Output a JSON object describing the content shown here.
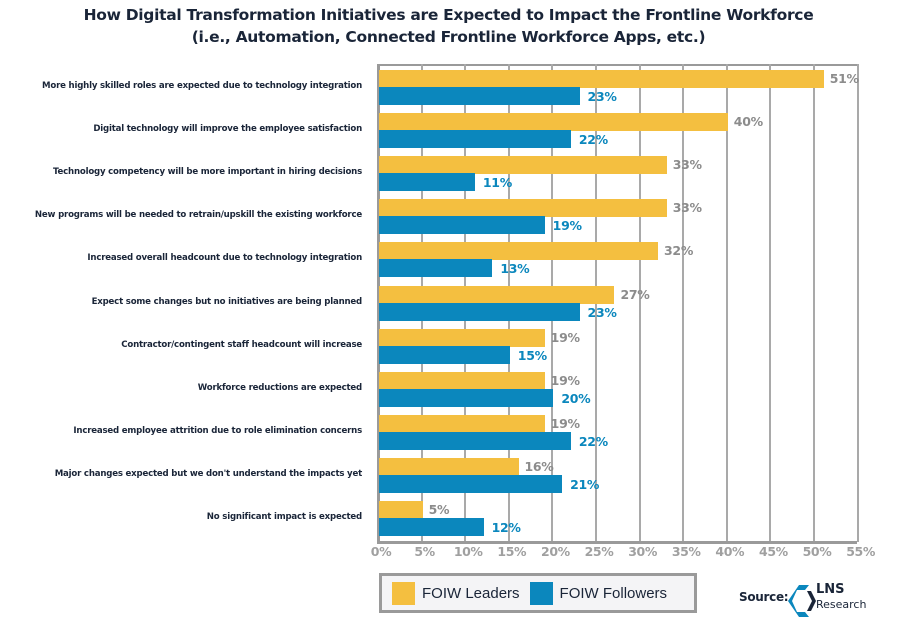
{
  "title": {
    "line1": "How Digital Transformation Initiatives are Expected to Impact the Frontline Workforce",
    "line2": "(i.e., Automation, Connected Frontline Workforce Apps, etc.)"
  },
  "colors": {
    "leaders": "#f4bf40",
    "followers": "#0b87bd",
    "grid": "#a9a9a9",
    "label_leaders": "#8c8c8c"
  },
  "legend": {
    "leaders": "FOIW Leaders",
    "followers": "FOIW Followers"
  },
  "source": {
    "label": "Source:",
    "logo_line1": "LNS",
    "logo_line2": "Research"
  },
  "axis": {
    "ticks": [
      "0%",
      "5%",
      "10%",
      "15%",
      "20%",
      "25%",
      "30%",
      "35%",
      "40%",
      "45%",
      "50%",
      "55%"
    ]
  },
  "rows": [
    {
      "label": "More highly skilled roles are expected due to technology integration",
      "leaders": 51,
      "followers": 23,
      "leaders_text": "51%",
      "followers_text": "23%"
    },
    {
      "label": "Digital technology will improve the employee satisfaction",
      "leaders": 40,
      "followers": 22,
      "leaders_text": "40%",
      "followers_text": "22%"
    },
    {
      "label": "Technology competency will be more important in hiring decisions",
      "leaders": 33,
      "followers": 11,
      "leaders_text": "33%",
      "followers_text": "11%"
    },
    {
      "label": "New programs will be needed to retrain/upskill the existing workforce",
      "leaders": 33,
      "followers": 19,
      "leaders_text": "33%",
      "followers_text": "19%"
    },
    {
      "label": "Increased overall headcount due to technology integration",
      "leaders": 32,
      "followers": 13,
      "leaders_text": "32%",
      "followers_text": "13%"
    },
    {
      "label": "Expect some changes but no initiatives are being planned",
      "leaders": 27,
      "followers": 23,
      "leaders_text": "27%",
      "followers_text": "23%"
    },
    {
      "label": "Contractor/contingent staff headcount will increase",
      "leaders": 19,
      "followers": 15,
      "leaders_text": "19%",
      "followers_text": "15%"
    },
    {
      "label": "Workforce reductions are expected",
      "leaders": 19,
      "followers": 20,
      "leaders_text": "19%",
      "followers_text": "20%"
    },
    {
      "label": "Increased employee attrition due to role elimination concerns",
      "leaders": 19,
      "followers": 22,
      "leaders_text": "19%",
      "followers_text": "22%"
    },
    {
      "label": "Major changes expected but we don't understand the impacts yet",
      "leaders": 16,
      "followers": 21,
      "leaders_text": "16%",
      "followers_text": "21%"
    },
    {
      "label": "No significant impact is expected",
      "leaders": 5,
      "followers": 12,
      "leaders_text": "5%",
      "followers_text": "12%"
    }
  ],
  "chart_data": {
    "type": "bar",
    "orientation": "horizontal",
    "title": "How Digital Transformation Initiatives are Expected to Impact the Frontline Workforce (i.e., Automation, Connected Frontline Workforce Apps, etc.)",
    "categories": [
      "More highly skilled roles are expected due to technology integration",
      "Digital technology will improve the employee satisfaction",
      "Technology competency will be more important in hiring decisions",
      "New programs will be needed to retrain/upskill the existing workforce",
      "Increased overall headcount due to technology integration",
      "Expect some changes but no initiatives are being planned",
      "Contractor/contingent staff headcount will increase",
      "Workforce reductions are expected",
      "Increased employee attrition due to role elimination concerns",
      "Major changes expected but we don't understand the impacts yet",
      "No significant impact is expected"
    ],
    "series": [
      {
        "name": "FOIW Leaders",
        "color": "#f4bf40",
        "values": [
          51,
          40,
          33,
          33,
          32,
          27,
          19,
          19,
          19,
          16,
          5
        ]
      },
      {
        "name": "FOIW Followers",
        "color": "#0b87bd",
        "values": [
          23,
          22,
          11,
          19,
          13,
          23,
          15,
          20,
          22,
          21,
          12
        ]
      }
    ],
    "xlabel": "",
    "ylabel": "",
    "xlim": [
      0,
      55
    ],
    "xticks": [
      "0%",
      "5%",
      "10%",
      "15%",
      "20%",
      "25%",
      "30%",
      "35%",
      "40%",
      "45%",
      "50%",
      "55%"
    ],
    "grid": true,
    "legend_position": "bottom",
    "source": "LNS Research"
  }
}
